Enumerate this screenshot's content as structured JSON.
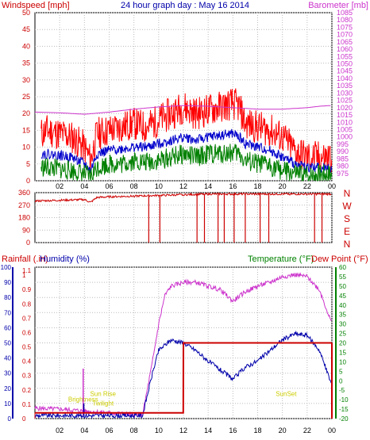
{
  "header": {
    "windspeed_label": "Windspeed [mph]",
    "title": "24 hour graph day : May 16 2014",
    "barometer_label": "Barometer [mb]"
  },
  "colors": {
    "wind_gust": "#ff0000",
    "wind_avg": "#0000cc",
    "wind_low": "#008000",
    "barometer": "#cc33cc",
    "direction": "#cc0000",
    "rain": "#cc0000",
    "humidity": "#0000aa",
    "temperature": "#008000",
    "dew_point": "#cc0000",
    "grid": "#bbbbbb"
  },
  "chart_data": [
    {
      "type": "line",
      "x_label_every": 2,
      "x_ticks": [
        "02",
        "04",
        "06",
        "08",
        "10",
        "12",
        "14",
        "16",
        "18",
        "20",
        "22",
        "00"
      ],
      "left_ticks": [
        "0",
        "5",
        "10",
        "15",
        "20",
        "25",
        "30",
        "35",
        "40",
        "45",
        "50"
      ],
      "right_ticks": [
        "975",
        "980",
        "985",
        "990",
        "995",
        "1000",
        "1005",
        "1010",
        "1015",
        "1020",
        "1025",
        "1030",
        "1035",
        "1040",
        "1045",
        "1050",
        "1055",
        "1060",
        "1065",
        "1070",
        "1075",
        "1080",
        "1085"
      ],
      "left_ylim": [
        0,
        50
      ],
      "right_ylim": [
        970,
        1085
      ],
      "series": [
        {
          "key": "gust",
          "hours": [
            0.5,
            1,
            2,
            3,
            4,
            4.5,
            5,
            6,
            7,
            8,
            9,
            10,
            11,
            12,
            13,
            14,
            15,
            16,
            16.5,
            17,
            18,
            19,
            20,
            21,
            22,
            23,
            24
          ],
          "values": [
            14,
            15,
            14,
            13,
            10,
            6,
            14,
            15,
            16,
            17,
            16,
            18,
            20,
            22,
            20,
            21,
            22,
            23,
            22,
            17,
            16,
            15,
            13,
            9,
            7,
            7,
            7
          ]
        },
        {
          "key": "avg",
          "hours": [
            0.5,
            1,
            2,
            3,
            4,
            4.5,
            5,
            6,
            7,
            8,
            9,
            10,
            11,
            12,
            13,
            14,
            15,
            16,
            16.5,
            17,
            18,
            19,
            20,
            21,
            22,
            23,
            24
          ],
          "values": [
            8,
            8,
            7.5,
            7,
            5,
            3,
            8,
            9,
            9.5,
            10,
            10,
            11,
            12,
            13,
            12,
            13,
            13.5,
            14,
            13,
            11,
            10,
            9,
            7,
            5,
            4,
            4,
            3.5
          ]
        },
        {
          "key": "low",
          "hours": [
            0.5,
            1,
            2,
            3,
            4,
            4.5,
            5,
            6,
            7,
            8,
            9,
            10,
            11,
            12,
            13,
            14,
            15,
            16,
            16.5,
            17,
            18,
            19,
            20,
            21,
            22,
            23,
            24
          ],
          "values": [
            4,
            4,
            3.5,
            3,
            2,
            1,
            4,
            5,
            5,
            6,
            5.5,
            6,
            7,
            8,
            7,
            8,
            8,
            8.5,
            8,
            6,
            5,
            4.5,
            3,
            2,
            1.5,
            2,
            2
          ]
        },
        {
          "key": "barometer",
          "hours": [
            0,
            2,
            4,
            6,
            8,
            10,
            12,
            14,
            16,
            18,
            20,
            22,
            23,
            24
          ],
          "values": [
            1017,
            1016.5,
            1015.5,
            1017,
            1019,
            1020.5,
            1021.5,
            1021,
            1020,
            1019,
            1019,
            1020,
            1021,
            1021.5
          ]
        }
      ]
    },
    {
      "type": "scatter",
      "x_ticks": [
        "02",
        "04",
        "06",
        "08",
        "10",
        "12",
        "14",
        "16",
        "18",
        "20",
        "22",
        "00"
      ],
      "y_ticks": [
        "0",
        "90",
        "180",
        "270",
        "360"
      ],
      "compass": [
        "N",
        "W",
        "S",
        "E",
        "N"
      ],
      "ylim": [
        0,
        360
      ],
      "direction_hours": [
        0,
        2,
        4,
        4.5,
        5,
        6,
        8,
        10,
        12,
        14,
        16,
        18,
        20,
        22,
        24
      ],
      "direction_values": [
        300,
        305,
        310,
        290,
        325,
        330,
        335,
        340,
        345,
        350,
        350,
        350,
        350,
        350,
        350
      ],
      "drops_hours": [
        9.2,
        10.1,
        13.1,
        13.7,
        14.8,
        15.3,
        16.1,
        17.0,
        18.2,
        18.9,
        22.6,
        23.2
      ]
    },
    {
      "type": "line",
      "header": {
        "rainfall": "Rainfall (.in)",
        "humidity": "Humidity (%)",
        "temperature": "Temperature (°F)",
        "dew_point": "Dew Point (°F)"
      },
      "x_ticks": [
        "02",
        "04",
        "06",
        "08",
        "10",
        "12",
        "14",
        "16",
        "18",
        "20",
        "22",
        "00"
      ],
      "hum_ticks": [
        "0",
        "10",
        "20",
        "30",
        "40",
        "50",
        "60",
        "70",
        "80",
        "90",
        "100"
      ],
      "rain_ticks": [
        "0",
        "0.1",
        "0.2",
        "0.3",
        "0.4",
        "0.5",
        "0.6",
        "0.7",
        "0.8",
        "0.9",
        "1",
        "1.1"
      ],
      "temp_ticks": [
        "-20",
        "-15",
        "-10",
        "-5",
        "0",
        "5",
        "10",
        "15",
        "20",
        "25",
        "30",
        "35",
        "40",
        "45",
        "50",
        "55",
        "60"
      ],
      "hum_ylim": [
        0,
        100
      ],
      "temp_ylim": [
        -20,
        60
      ],
      "annotations": [
        {
          "text": "Brightness",
          "hour": 3.9,
          "y": -11
        },
        {
          "text": "Sun Rise",
          "hour": 5.5,
          "y": -8
        },
        {
          "text": "Twilight",
          "hour": 5.5,
          "y": -13
        },
        {
          "text": "SunSet",
          "hour": 20.3,
          "y": -8
        }
      ],
      "series": [
        {
          "key": "temperature",
          "hours": [
            0,
            2,
            4,
            6,
            8,
            8.7,
            9.5,
            10,
            10.5,
            11,
            12,
            13,
            14,
            15,
            16,
            17,
            18,
            19,
            20,
            21,
            22,
            23,
            24
          ],
          "values": [
            -14.5,
            -15,
            -16,
            -17,
            -18,
            -18,
            10,
            30,
            45,
            50,
            52,
            52,
            50,
            48,
            42,
            47,
            50,
            52,
            55,
            56,
            55,
            48,
            30
          ]
        },
        {
          "key": "humidity",
          "hours": [
            0,
            2,
            4,
            6,
            8,
            8.7,
            9.5,
            10,
            11,
            12,
            13,
            14,
            15,
            16,
            17,
            18,
            19,
            20,
            21,
            22,
            23,
            24
          ],
          "values": [
            2,
            2,
            2,
            2,
            2,
            2,
            30,
            45,
            52,
            50,
            45,
            38,
            32,
            26,
            34,
            38,
            45,
            52,
            56,
            55,
            45,
            22
          ]
        },
        {
          "key": "dew_point",
          "hours": [
            0,
            11.99,
            12,
            24
          ],
          "values": [
            -17,
            -17,
            20,
            20
          ]
        },
        {
          "key": "rain",
          "hours": [
            0,
            11.9,
            12,
            24
          ],
          "values": [
            0,
            0,
            0.45,
            0.45
          ]
        }
      ]
    }
  ]
}
